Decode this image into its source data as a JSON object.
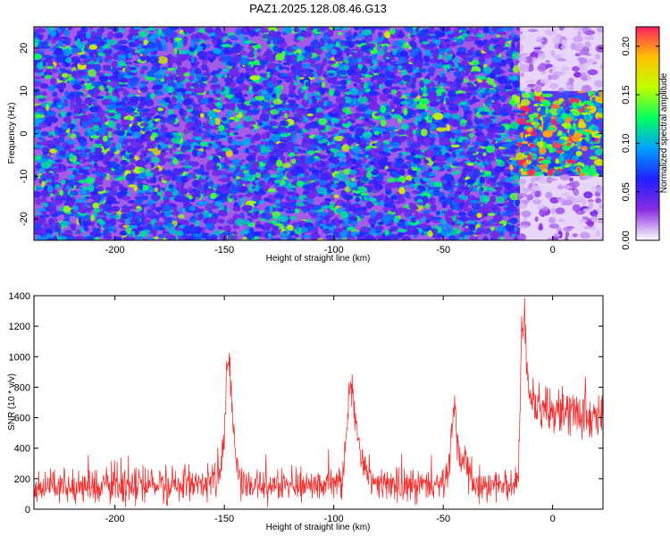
{
  "title": "PAZ1.2025.128.08.46.G13",
  "chart_data": [
    {
      "type": "heatmap",
      "xlabel": "Height of straight line (km)",
      "ylabel": "Frequency (Hz)",
      "xlim": [
        -237,
        23
      ],
      "ylim": [
        -25,
        25
      ],
      "x_ticks": [
        -200,
        -150,
        -100,
        -50,
        0
      ],
      "y_ticks": [
        -20,
        -10,
        0,
        10,
        20
      ],
      "x_tick_labels": [
        "-200",
        "-150",
        "-100",
        "-50",
        "0"
      ],
      "y_tick_labels": [
        "-20",
        "-10",
        "0",
        "10",
        "20"
      ],
      "colorbar": {
        "label": "Normalized spectral amplitude",
        "range": [
          0,
          0.22
        ],
        "ticks": [
          0.0,
          0.05,
          0.1,
          0.15,
          0.2
        ],
        "tick_labels": [
          "0.00",
          "0.05",
          "0.10",
          "0.15",
          "0.20"
        ],
        "colormap": [
          "#ffffff",
          "#8a2be2",
          "#2020ff",
          "#00a0ff",
          "#00ff60",
          "#c0ff00",
          "#ffc000",
          "#ff2060"
        ]
      },
      "regions": [
        {
          "x_range": [
            -237,
            -15
          ],
          "y_range": [
            -25,
            25
          ],
          "level": 0.06
        },
        {
          "x_range": [
            -15,
            23
          ],
          "y_range": [
            -10,
            10
          ],
          "level": 0.11
        },
        {
          "x_range": [
            -15,
            23
          ],
          "y_range": [
            10,
            25
          ],
          "level": 0.015
        },
        {
          "x_range": [
            -15,
            23
          ],
          "y_range": [
            -25,
            -10
          ],
          "level": 0.015
        }
      ]
    },
    {
      "type": "line",
      "xlabel": "Height of straight line (km)",
      "ylabel": "SNR (10 * v/v)",
      "xlim": [
        -237,
        23
      ],
      "ylim": [
        0,
        1400
      ],
      "x_ticks": [
        -200,
        -150,
        -100,
        -50,
        0
      ],
      "y_ticks": [
        0,
        200,
        400,
        600,
        800,
        1000,
        1200,
        1400
      ],
      "x_tick_labels": [
        "-200",
        "-150",
        "-100",
        "-50",
        "0"
      ],
      "y_tick_labels": [
        "0",
        "200",
        "400",
        "600",
        "800",
        "1000",
        "1200",
        "1400"
      ],
      "color": "#ee3333",
      "series": [
        {
          "x": [
            -237,
            -230,
            -220,
            -210,
            -200,
            -195,
            -190,
            -180,
            -170,
            -160,
            -155,
            -152,
            -150,
            -149,
            -148,
            -147,
            -146,
            -145,
            -143,
            -140,
            -130,
            -120,
            -110,
            -100,
            -96,
            -94,
            -93,
            -92,
            -91,
            -90,
            -89,
            -88,
            -86,
            -83,
            -80,
            -70,
            -60,
            -50,
            -47,
            -46,
            -45,
            -44,
            -43,
            -42,
            -40,
            -38,
            -36,
            -30,
            -25,
            -20,
            -16,
            -15.5,
            -15,
            -14,
            -13,
            -12,
            -11,
            -10,
            -8,
            -5,
            0,
            5,
            10,
            15,
            20,
            23
          ],
          "y": [
            140,
            150,
            145,
            150,
            160,
            190,
            165,
            160,
            165,
            170,
            175,
            230,
            480,
            900,
            1000,
            820,
            600,
            360,
            200,
            165,
            160,
            155,
            155,
            160,
            200,
            520,
            760,
            800,
            700,
            580,
            470,
            380,
            260,
            175,
            165,
            160,
            160,
            165,
            300,
            520,
            640,
            500,
            330,
            300,
            380,
            200,
            175,
            150,
            145,
            150,
            160,
            300,
            700,
            1200,
            1300,
            1050,
            820,
            720,
            690,
            670,
            650,
            640,
            630,
            620,
            610,
            620
          ],
          "noise": [
            90,
            95,
            95,
            95,
            110,
            150,
            115,
            110,
            115,
            115,
            115,
            130,
            200,
            150,
            120,
            150,
            150,
            130,
            120,
            110,
            105,
            100,
            100,
            100,
            120,
            110,
            100,
            120,
            120,
            120,
            110,
            100,
            100,
            100,
            100,
            100,
            95,
            100,
            120,
            130,
            120,
            120,
            110,
            100,
            120,
            100,
            100,
            95,
            95,
            95,
            100,
            110,
            150,
            140,
            140,
            160,
            150,
            140,
            140,
            140,
            135,
            135,
            140,
            140,
            140,
            140
          ]
        }
      ]
    }
  ]
}
